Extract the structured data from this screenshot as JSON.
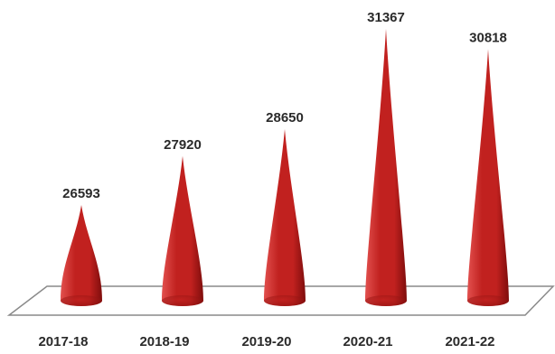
{
  "chart_data": {
    "type": "bar",
    "bar_shape": "cone",
    "categories": [
      "2017-18",
      "2018-19",
      "2019-20",
      "2020-21",
      "2021-22"
    ],
    "values": [
      26593,
      27920,
      28650,
      31367,
      30818
    ],
    "title": "",
    "xlabel": "",
    "ylabel": "",
    "data_labels": [
      "26593",
      "27920",
      "28650",
      "31367",
      "30818"
    ],
    "grid": false,
    "legend": "none",
    "colors": {
      "cone_light": "#e2504e",
      "cone_mid": "#c1211f",
      "cone_dark": "#7e0d0c",
      "floor_stroke": "#8a8a8a"
    }
  }
}
